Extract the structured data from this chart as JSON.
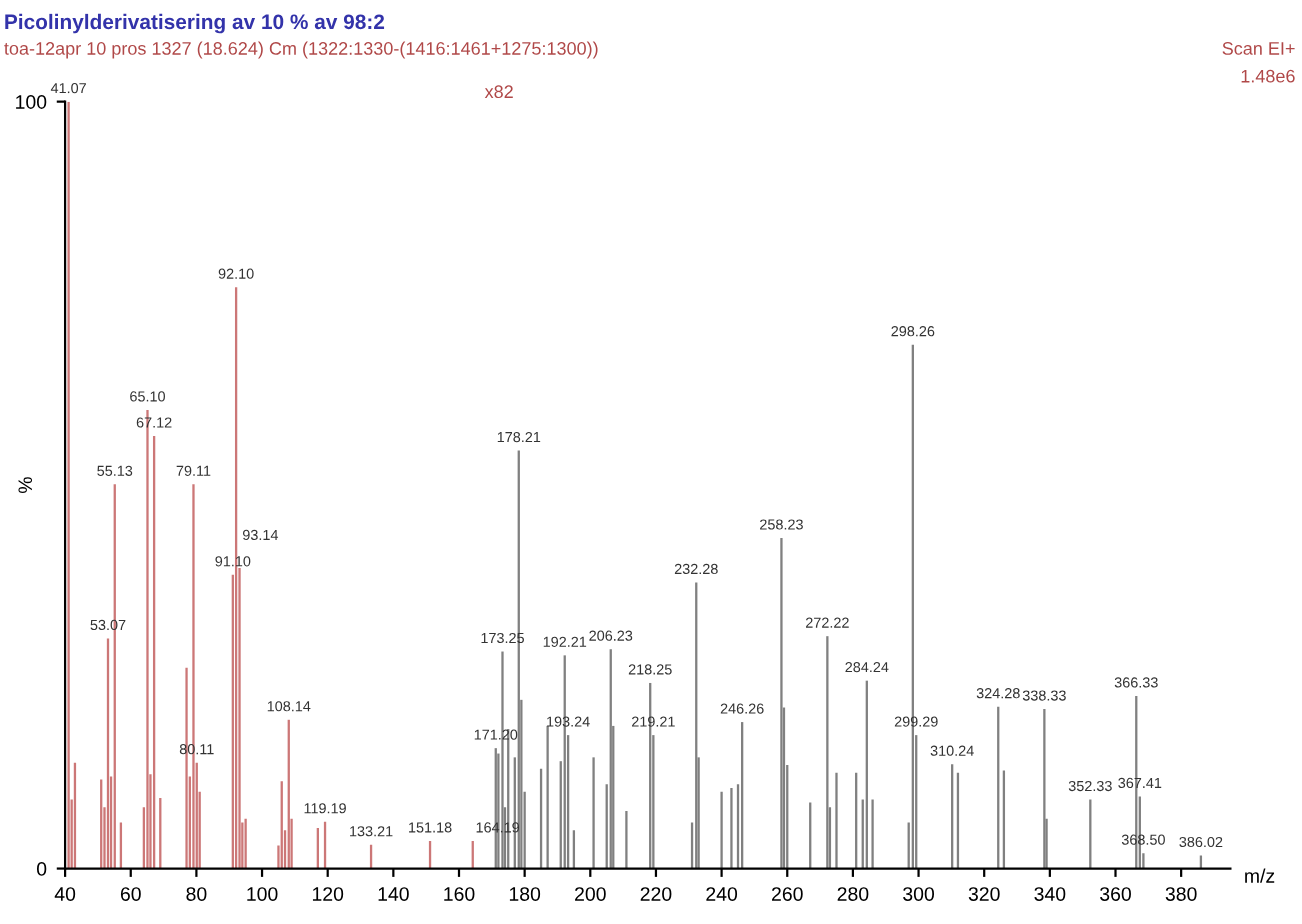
{
  "chart_data": {
    "type": "bar",
    "title": "Picolinylderivatisering av 10 % av 98:2",
    "subtitle": "toa-12apr 10 pros 1327 (18.624) Cm (1322:1330-(1416:1461+1275:1300))",
    "xlabel": "m/z",
    "ylabel": "%",
    "annotations": [
      "x82",
      "Scan EI+",
      "1.48e6",
      {
        "text": "41.07",
        "x": 41.07,
        "y": 100
      },
      {
        "text": "53.07",
        "x": 53.07,
        "y": 30.0
      },
      {
        "text": "55.13",
        "x": 55.13,
        "y": 50.1
      },
      {
        "text": "65.10",
        "x": 65.1,
        "y": 59.8
      },
      {
        "text": "67.12",
        "x": 67.12,
        "y": 56.4
      },
      {
        "text": "79.11",
        "x": 79.11,
        "y": 50.1
      },
      {
        "text": "80.11",
        "x": 80.11,
        "y": 13.8
      },
      {
        "text": "91.10",
        "x": 91.1,
        "y": 38.3
      },
      {
        "text": "92.10",
        "x": 92.1,
        "y": 75.8
      },
      {
        "text": "93.14",
        "x": 93.14,
        "y": 39.2
      },
      {
        "text": "108.14",
        "x": 108.14,
        "y": 19.4
      },
      {
        "text": "119.19",
        "x": 119.19,
        "y": 6.1
      },
      {
        "text": "133.21",
        "x": 133.21,
        "y": 3.1
      },
      {
        "text": "151.18",
        "x": 151.18,
        "y": 3.6
      },
      {
        "text": "164.19",
        "x": 164.19,
        "y": 3.6
      },
      {
        "text": "171.20",
        "x": 171.2,
        "y": 15.7
      },
      {
        "text": "173.25",
        "x": 173.25,
        "y": 28.3
      },
      {
        "text": "178.21",
        "x": 178.21,
        "y": 54.5
      },
      {
        "text": "192.21",
        "x": 192.21,
        "y": 27.8
      },
      {
        "text": "193.24",
        "x": 193.24,
        "y": 17.4
      },
      {
        "text": "206.23",
        "x": 206.23,
        "y": 28.6
      },
      {
        "text": "218.25",
        "x": 218.25,
        "y": 24.2
      },
      {
        "text": "219.21",
        "x": 219.21,
        "y": 17.4
      },
      {
        "text": "232.28",
        "x": 232.28,
        "y": 37.3
      },
      {
        "text": "246.26",
        "x": 246.26,
        "y": 19.1
      },
      {
        "text": "258.23",
        "x": 258.23,
        "y": 43.1
      },
      {
        "text": "272.22",
        "x": 272.22,
        "y": 30.3
      },
      {
        "text": "284.24",
        "x": 284.24,
        "y": 24.5
      },
      {
        "text": "298.26",
        "x": 298.26,
        "y": 68.3
      },
      {
        "text": "299.29",
        "x": 299.29,
        "y": 17.4
      },
      {
        "text": "310.24",
        "x": 310.24,
        "y": 13.6
      },
      {
        "text": "324.28",
        "x": 324.28,
        "y": 21.1
      },
      {
        "text": "338.33",
        "x": 338.33,
        "y": 20.8
      },
      {
        "text": "352.33",
        "x": 352.33,
        "y": 9.0
      },
      {
        "text": "366.33",
        "x": 366.33,
        "y": 22.5
      },
      {
        "text": "367.41",
        "x": 367.41,
        "y": 9.4
      },
      {
        "text": "368.50",
        "x": 368.5,
        "y": 2.0
      },
      {
        "text": "386.02",
        "x": 386.02,
        "y": 1.7
      }
    ],
    "x": [
      41.07,
      42,
      43,
      51,
      52,
      53.07,
      54,
      55.13,
      57,
      64,
      65.1,
      66,
      67.12,
      69,
      77,
      78,
      79.11,
      80.11,
      81,
      91.1,
      92.1,
      93.14,
      94,
      95,
      105,
      106,
      107,
      108.14,
      109,
      117,
      119.19,
      133.21,
      151.18,
      164.19,
      171.2,
      172,
      173.25,
      174,
      175,
      177,
      178.21,
      179,
      180,
      185,
      187,
      191,
      192.21,
      193.24,
      195,
      201,
      205,
      206.23,
      207,
      211,
      218.25,
      219.21,
      231,
      232.28,
      233,
      240,
      243,
      245,
      246.26,
      258.23,
      259,
      260,
      267,
      272.22,
      273,
      275,
      281,
      283,
      284.24,
      286,
      297,
      298.26,
      299.29,
      310.24,
      312,
      324.28,
      326,
      338.33,
      339,
      352.33,
      366.33,
      367.41,
      368.5,
      386.02
    ],
    "values": [
      100,
      9,
      13.8,
      11.6,
      8,
      30.0,
      12,
      50.1,
      6,
      8,
      59.8,
      12.3,
      56.4,
      9.2,
      26.2,
      12,
      50.1,
      13.8,
      10,
      38.3,
      75.8,
      39.2,
      6,
      6.5,
      3,
      11.4,
      5,
      19.4,
      6.5,
      5.3,
      6.1,
      3.1,
      3.6,
      3.6,
      15.7,
      15,
      28.3,
      8,
      18.2,
      14.5,
      54.5,
      22,
      10,
      13,
      18.6,
      14,
      27.8,
      17.4,
      5,
      14.5,
      11,
      28.6,
      18.6,
      7.5,
      24.2,
      17.4,
      6,
      37.3,
      14.5,
      10,
      10.5,
      11,
      19.1,
      43.1,
      21,
      13.5,
      8.6,
      30.3,
      8,
      12.5,
      12.5,
      9,
      24.5,
      9,
      6,
      68.3,
      17.4,
      13.6,
      12.5,
      21.1,
      12.8,
      20.8,
      6.5,
      9.0,
      22.5,
      9.4,
      2.0,
      1.7
    ],
    "colors": [
      "#cc7777",
      "#cc7777",
      "#cc7777",
      "#cc7777",
      "#cc7777",
      "#cc7777",
      "#cc7777",
      "#cc7777",
      "#cc7777",
      "#cc7777",
      "#cc7777",
      "#cc7777",
      "#cc7777",
      "#cc7777",
      "#cc7777",
      "#cc7777",
      "#cc7777",
      "#cc7777",
      "#cc7777",
      "#cc7777",
      "#cc7777",
      "#cc7777",
      "#cc7777",
      "#cc7777",
      "#cc7777",
      "#cc7777",
      "#cc7777",
      "#cc7777",
      "#cc7777",
      "#cc7777",
      "#cc7777",
      "#cc7777",
      "#cc7777",
      "#cc7777",
      "#808080",
      "#808080",
      "#808080",
      "#808080",
      "#808080",
      "#808080",
      "#808080",
      "#808080",
      "#808080",
      "#808080",
      "#808080",
      "#808080",
      "#808080",
      "#808080",
      "#808080",
      "#808080",
      "#808080",
      "#808080",
      "#808080",
      "#808080",
      "#808080",
      "#808080",
      "#808080",
      "#808080",
      "#808080",
      "#808080",
      "#808080",
      "#808080",
      "#808080",
      "#808080",
      "#808080",
      "#808080",
      "#808080",
      "#808080",
      "#808080",
      "#808080",
      "#808080",
      "#808080",
      "#808080",
      "#808080",
      "#808080",
      "#808080",
      "#808080",
      "#808080",
      "#808080",
      "#808080",
      "#808080",
      "#808080",
      "#808080",
      "#808080",
      "#808080",
      "#808080",
      "#808080",
      "#808080"
    ],
    "xlim": [
      40,
      395
    ],
    "xticks": [
      40,
      60,
      80,
      100,
      120,
      140,
      160,
      180,
      200,
      220,
      240,
      260,
      280,
      300,
      320,
      340,
      360,
      380
    ],
    "ylim": [
      0,
      100
    ],
    "yticks": [
      0,
      100
    ],
    "grid": false,
    "legend": false
  }
}
